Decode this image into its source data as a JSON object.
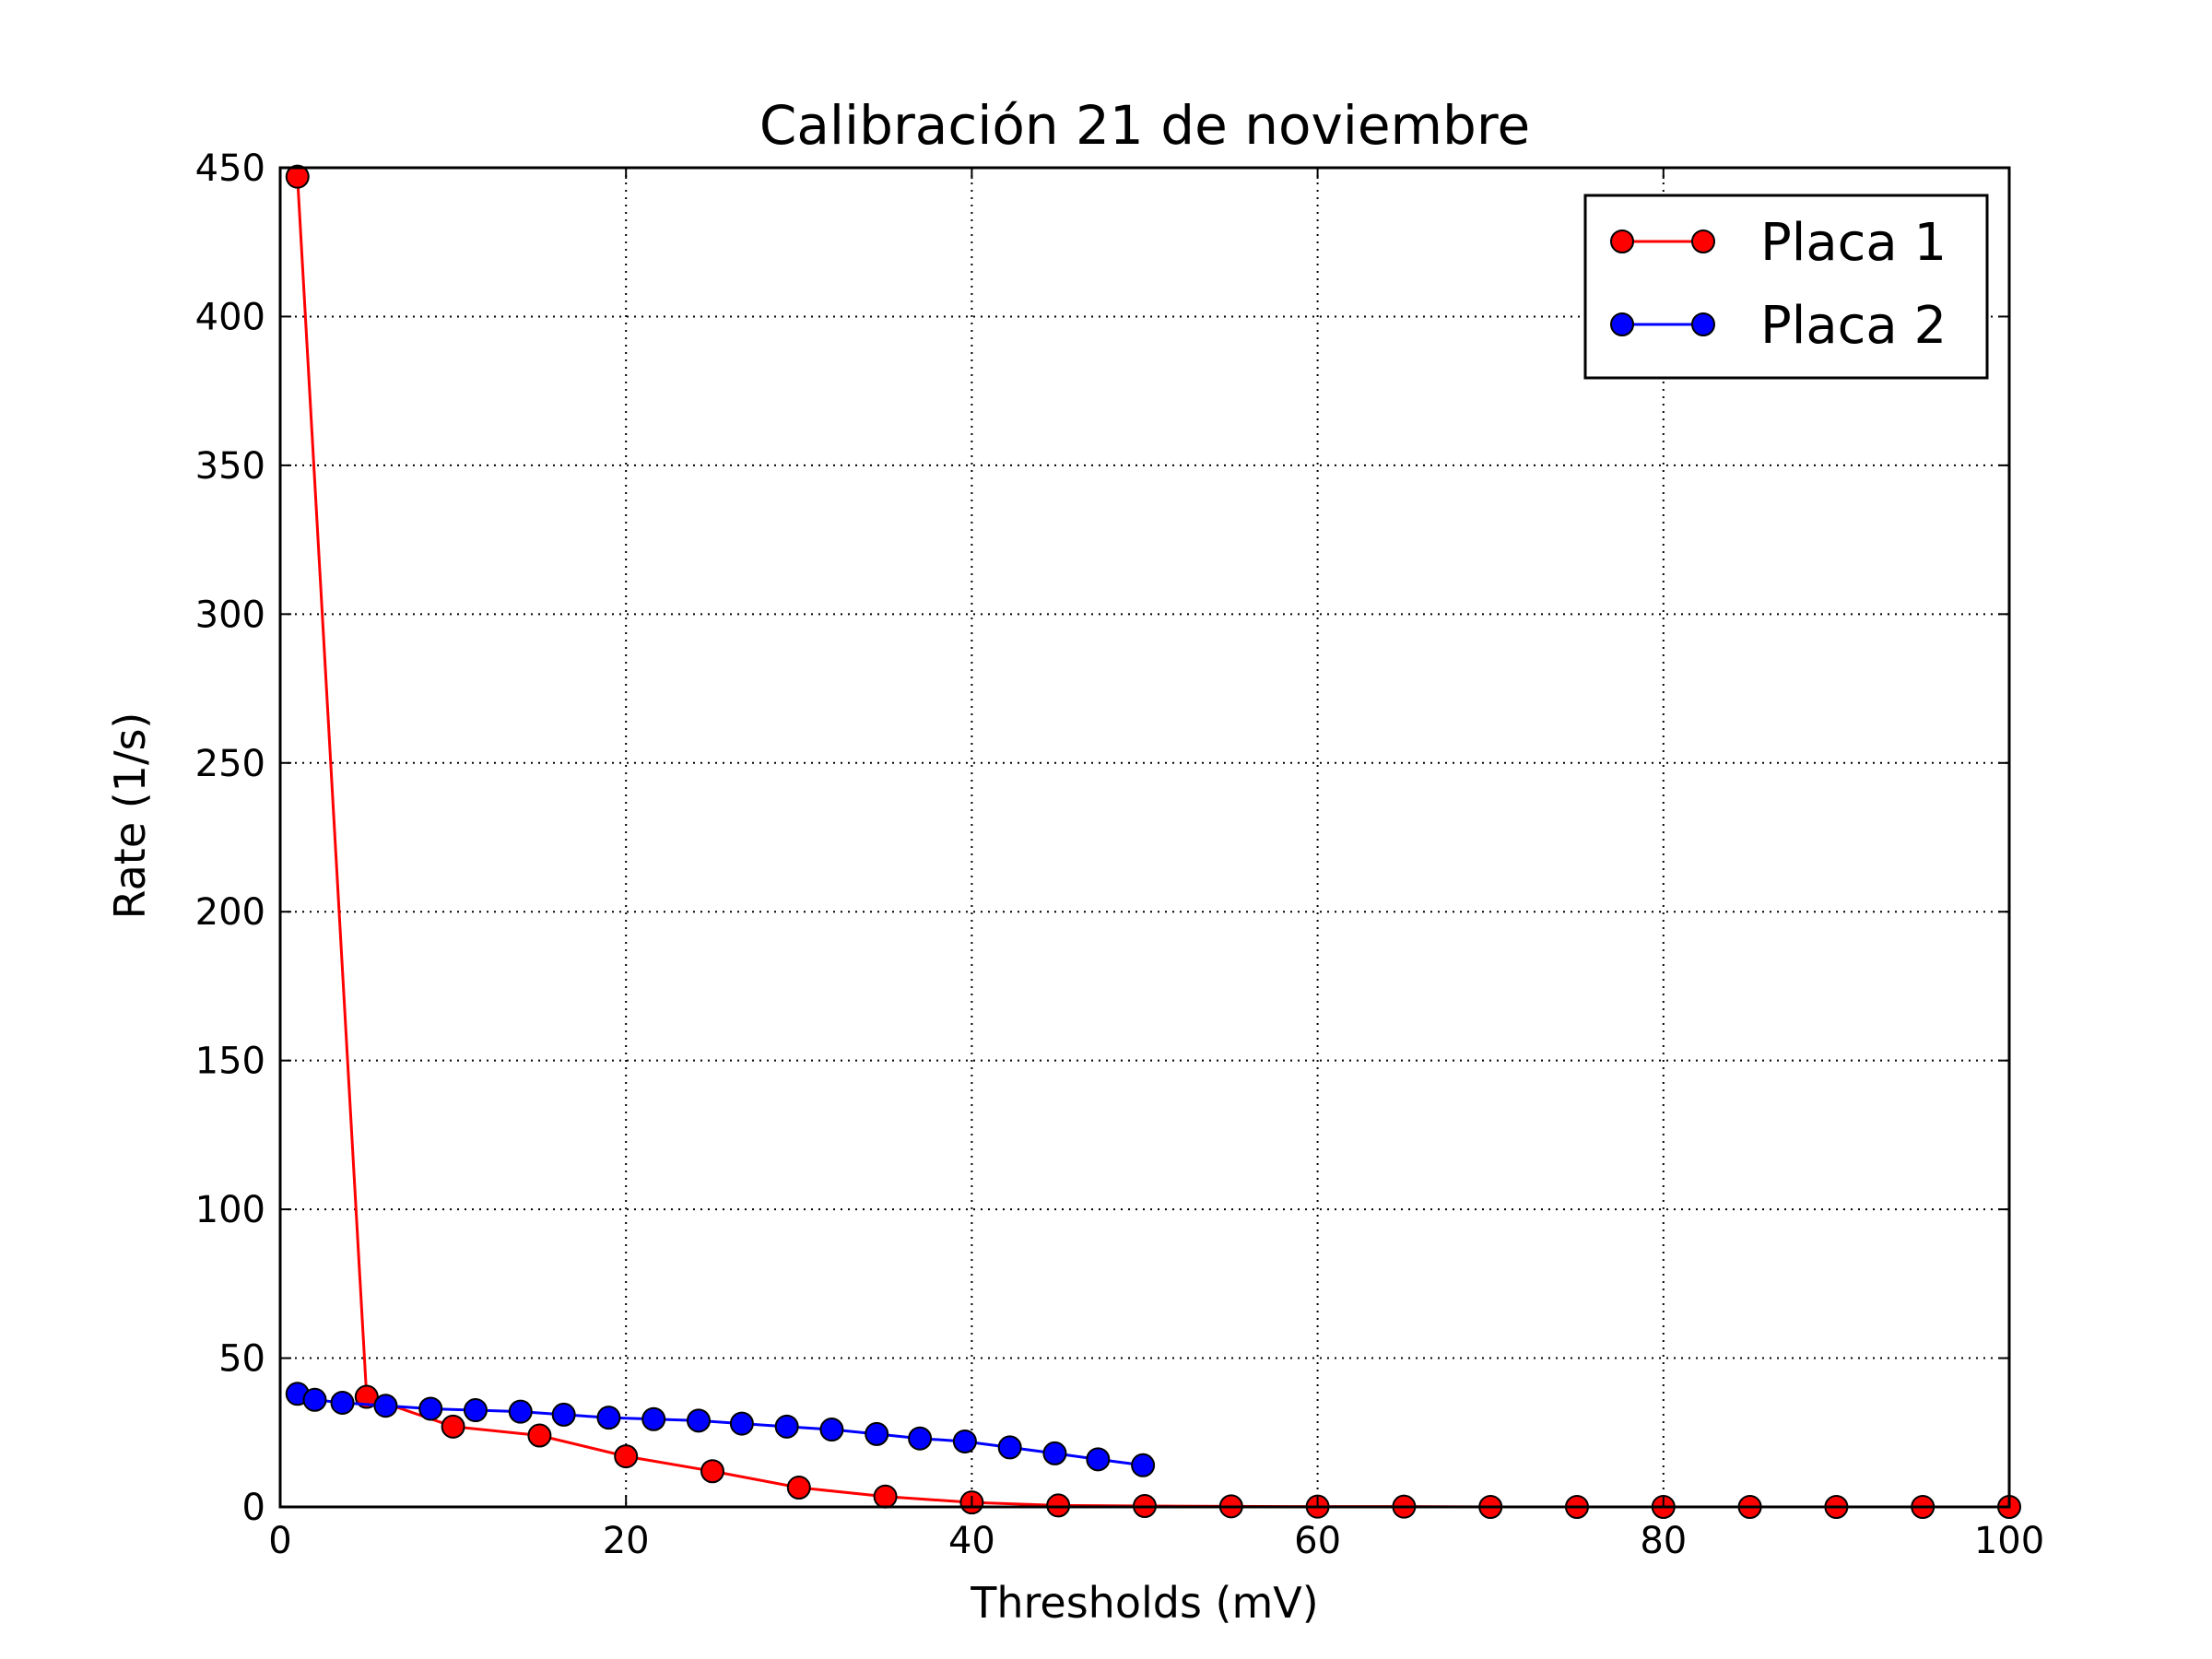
{
  "chart_data": {
    "type": "line",
    "title": "Calibración 21 de noviembre",
    "xlabel": "Thresholds (mV)",
    "ylabel": "Rate (1/s)",
    "xlim": [
      0,
      100
    ],
    "ylim": [
      0,
      450
    ],
    "xticks": [
      0,
      20,
      40,
      60,
      80,
      100
    ],
    "yticks": [
      0,
      50,
      100,
      150,
      200,
      250,
      300,
      350,
      400,
      450
    ],
    "grid": true,
    "legend_position": "top-right",
    "series": [
      {
        "name": "Placa 1",
        "color": "#ff0000",
        "marker": "circle",
        "x": [
          1,
          5,
          10,
          15,
          20,
          25,
          30,
          35,
          40,
          45,
          50,
          55,
          60,
          65,
          70,
          75,
          80,
          85,
          90,
          95,
          100
        ],
        "y": [
          447,
          37,
          27,
          24,
          17,
          12,
          6.5,
          3.5,
          1.5,
          0.5,
          0.3,
          0.2,
          0.1,
          0.1,
          0,
          0,
          0,
          0,
          0,
          0,
          0
        ]
      },
      {
        "name": "Placa 2",
        "color": "#0000ff",
        "marker": "circle",
        "x": [
          1,
          2,
          3.6,
          6.1,
          8.7,
          11.3,
          13.9,
          16.4,
          19,
          21.6,
          24.2,
          26.7,
          29.3,
          31.9,
          34.5,
          37,
          39.6,
          42.2,
          44.8,
          47.3,
          49.9
        ],
        "y": [
          38,
          36,
          35,
          34,
          33,
          32.5,
          32,
          31,
          30,
          29.5,
          29,
          28,
          27,
          26,
          24.5,
          23,
          22,
          20,
          18,
          16,
          14
        ]
      }
    ]
  }
}
